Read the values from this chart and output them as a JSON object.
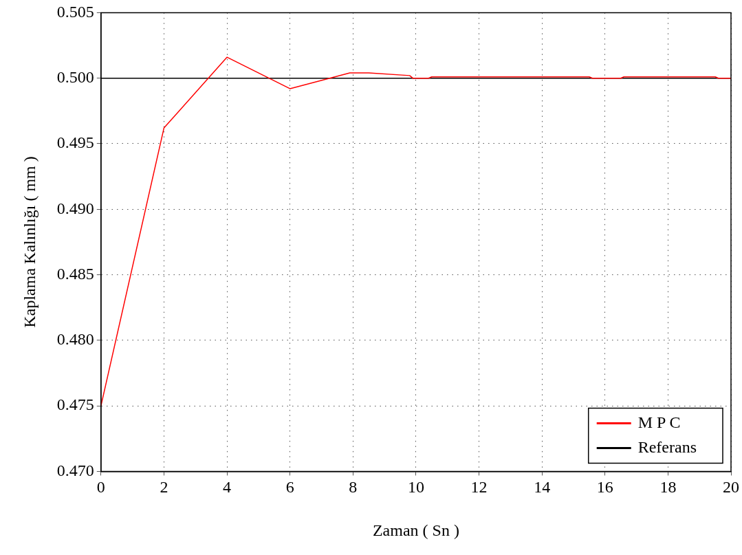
{
  "chart_data": {
    "type": "line",
    "xlabel": "Zaman ( Sn )",
    "ylabel": "Kaplama Kalınlığı ( mm )",
    "xlim": [
      0,
      20
    ],
    "xticks": [
      0,
      2,
      4,
      6,
      8,
      10,
      12,
      14,
      16,
      18,
      20
    ],
    "ylim": [
      0.47,
      0.505
    ],
    "yticks": [
      {
        "value": 0.47,
        "label": "0.470"
      },
      {
        "value": 0.475,
        "label": "0.475"
      },
      {
        "value": 0.48,
        "label": "0.480"
      },
      {
        "value": 0.485,
        "label": "0.485"
      },
      {
        "value": 0.49,
        "label": "0.490"
      },
      {
        "value": 0.495,
        "label": "0.495"
      },
      {
        "value": 0.5,
        "label": "0.500"
      },
      {
        "value": 0.505,
        "label": "0.505"
      }
    ],
    "grid": true,
    "legend": "bottom right",
    "marker": "none",
    "line_style": "solid",
    "series": [
      {
        "name": "M P C",
        "color": "#ff0000",
        "x": [
          0,
          2,
          4,
          6,
          7.9,
          8.5,
          9.8,
          9.9,
          10.4,
          10.5,
          15.5,
          15.6,
          16.5,
          16.6,
          19.5,
          19.6,
          20
        ],
        "values": [
          0.475,
          0.4962,
          0.5016,
          0.4992,
          0.5004,
          0.5004,
          0.5002,
          0.5,
          0.5,
          0.5001,
          0.5001,
          0.5,
          0.5,
          0.5001,
          0.5001,
          0.5,
          0.5
        ]
      },
      {
        "name": "Referans",
        "color": "#000000",
        "x": [
          0,
          20
        ],
        "values": [
          0.5,
          0.5
        ]
      }
    ]
  }
}
